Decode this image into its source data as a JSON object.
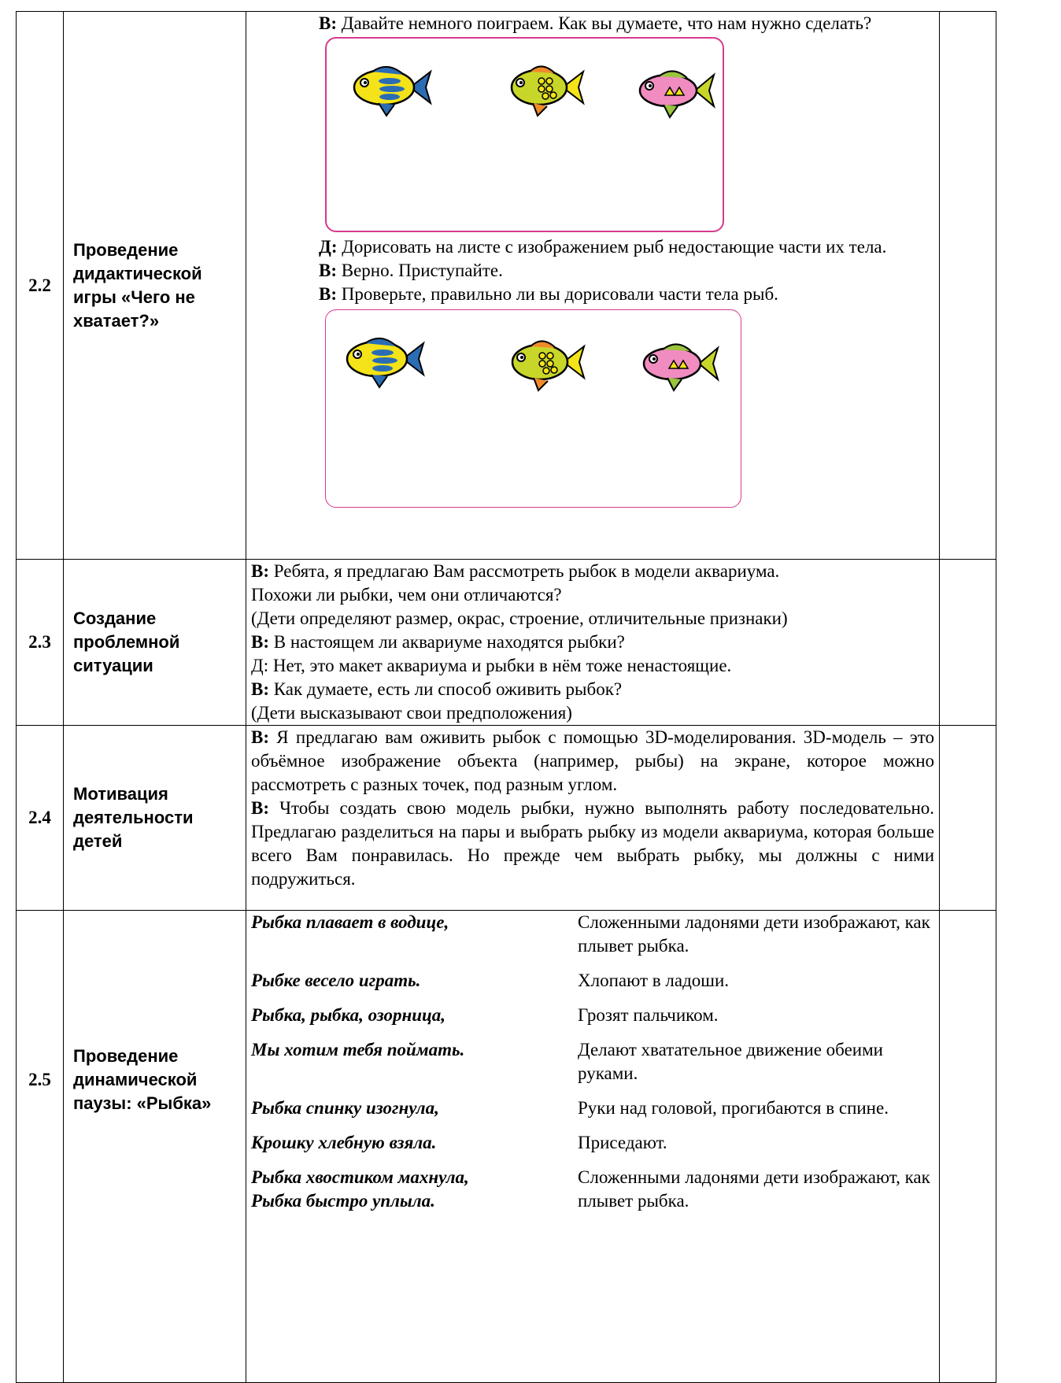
{
  "rows": [
    {
      "number": "2.2",
      "title": "Проведение дидактической игры «Чего не хватает?»",
      "lines": [
        {
          "speaker": "В:",
          "text": "Давайте немного поиграем. Как вы думаете, что нам нужно сделать?"
        },
        {
          "speaker": "Д:",
          "text": "Дорисовать на листе с изображением рыб недостающие части их тела."
        },
        {
          "speaker": "В:",
          "text": "Верно. Приступайте."
        },
        {
          "speaker": "В:",
          "text": "Проверьте, правильно ли вы дорисовали части тела рыб."
        }
      ]
    },
    {
      "number": "2.3",
      "title": "Создание проблемной ситуации",
      "lines": [
        {
          "speaker": "В:",
          "text": "Ребята, я предлагаю Вам рассмотреть рыбок в модели аквариума. Похожи ли рыбки, чем они отличаются?"
        },
        {
          "text": "(Дети определяют размер, окрас, строение, отличительные признаки)"
        },
        {
          "speaker": "В:",
          "text": "В настоящем ли аквариуме находятся рыбки?"
        },
        {
          "text": "Д: Нет, это макет аквариума и рыбки в нём тоже ненастоящие."
        },
        {
          "speaker": "В:",
          "text": "Как думаете, есть ли способ оживить рыбок?"
        },
        {
          "text": "(Дети высказывают свои предположения)"
        }
      ]
    },
    {
      "number": "2.4",
      "title": "Мотивация деятельности детей",
      "lines": [
        {
          "speaker": "В:",
          "text": "Я предлагаю вам оживить рыбок с помощью 3D-моделирования. 3D-модель – это объёмное изображение объекта (например, рыбы) на экране, которое можно рассмотреть с разных точек, под разным углом."
        },
        {
          "speaker": "В:",
          "text": "Чтобы создать свою модель рыбки, нужно выполнять работу последовательно. Предлагаю разделиться на пары и выбрать рыбку из модели аквариума, которая больше всего Вам понравилась. Но прежде чем выбрать рыбку, мы должны с ними подружиться."
        }
      ]
    },
    {
      "number": "2.5",
      "title": "Проведение динамической паузы: «Рыбка»",
      "poem": [
        {
          "verse": "Рыбка плавает в водице,",
          "action": "Сложенными ладонями дети изображают, как плывет рыбка."
        },
        {
          "verse": "Рыбке весело играть.",
          "action": "Хлопают в ладоши."
        },
        {
          "verse": "Рыбка, рыбка, озорница,",
          "action": "Грозят пальчиком."
        },
        {
          "verse": "Мы хотим тебя поймать.",
          "action": "Делают хватательное движение обеими руками."
        },
        {
          "verse": "Рыбка спинку изогнула,",
          "action": "Руки над головой, прогибаются в спине."
        },
        {
          "verse": "Крошку хлебную взяла.",
          "action": "Приседают."
        },
        {
          "verse": "Рыбка хвостиком махнула,\nРыбка быстро уплыла.",
          "action": "Сложенными ладонями дети изображают, как плывет рыбка."
        }
      ]
    }
  ]
}
